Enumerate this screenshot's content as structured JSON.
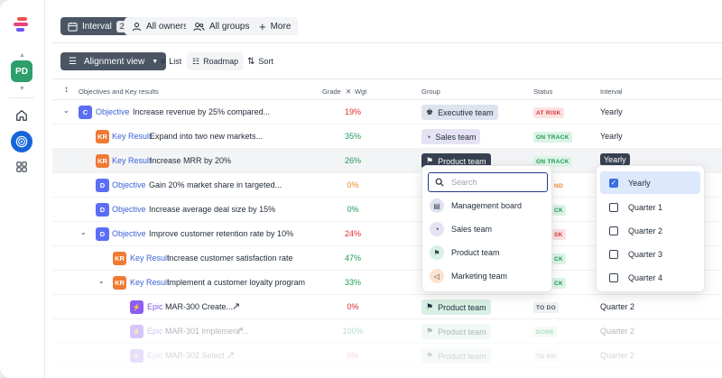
{
  "toolbar": {
    "interval_label": "Interval",
    "interval_count": "2",
    "owners_label": "All owners",
    "groups_label": "All groups",
    "more_label": "More"
  },
  "sidebar": {
    "avatar_initials": "PD"
  },
  "views": {
    "alignment_label": "Alignment view",
    "list_label": "List",
    "roadmap_label": "Roadmap",
    "sort_label": "Sort"
  },
  "table": {
    "headers": {
      "objectives": "Objectives and Key results",
      "grade": "Grade",
      "wgt": "Wgt",
      "group": "Group",
      "status": "Status",
      "interval": "Interval"
    },
    "rows": [
      {
        "tag": "C",
        "type": "Objective",
        "title": "Increase revenue by 25% compared...",
        "grade": "19%",
        "group": "Executive team",
        "status": "AT RISK",
        "interval": "Yearly"
      },
      {
        "tag": "KR",
        "type": "Key Result",
        "title": "Expand into two new markets...",
        "grade": "35%",
        "group": "Sales team",
        "status": "ON TRACK",
        "interval": "Yearly"
      },
      {
        "tag": "KR",
        "type": "Key Result",
        "title": "Increase MRR by 20%",
        "grade": "26%",
        "group": "Product team",
        "status": "ON TRACK",
        "interval": "Yearly"
      },
      {
        "tag": "D",
        "type": "Objective",
        "title": "Gain 20% market share in targeted...",
        "grade": "0%",
        "status": "ND"
      },
      {
        "tag": "D",
        "type": "Objective",
        "title": "Increase average deal size by 15%",
        "grade": "0%",
        "status": "CK"
      },
      {
        "tag": "D",
        "type": "Objective",
        "title": "Improve customer retention rate by 10%",
        "grade": "24%",
        "status": "SK"
      },
      {
        "tag": "KR",
        "type": "Key Result",
        "title": "Increase customer satisfaction rate",
        "grade": "47%",
        "status": "CK"
      },
      {
        "tag": "KR",
        "type": "Key Result",
        "title": "Implement a customer loyalty program",
        "grade": "33%",
        "status": "CK"
      },
      {
        "tag": "⚡",
        "type": "Epic",
        "title": "MAR-300 Create...",
        "grade": "0%",
        "group": "Product team",
        "status": "TO DO",
        "interval": "Quarter 2"
      },
      {
        "tag": "⚡",
        "type": "Epic",
        "title": "MAR-301 Implement ...",
        "grade": "100%",
        "group": "Product team",
        "status": "DONE",
        "interval": "Quarter 2"
      },
      {
        "tag": "⚡",
        "type": "Epic",
        "title": "MAR-302 Select ...",
        "grade": "0%",
        "group": "Product team",
        "status": "TO DO",
        "interval": "Quarter 2"
      }
    ]
  },
  "group_dropdown": {
    "search_placeholder": "Search",
    "items": [
      "Management board",
      "Sales team",
      "Product team",
      "Marketing team"
    ]
  },
  "interval_dropdown": {
    "items": [
      "Yearly",
      "Quarter 1",
      "Quarter 2",
      "Quarter 3",
      "Quarter 4"
    ],
    "selected": "Yearly"
  },
  "colors": {
    "accent": "#1565d8",
    "avatar": "#2e9e6a",
    "at_risk": "#d73535",
    "on_track": "#1f9a55"
  }
}
